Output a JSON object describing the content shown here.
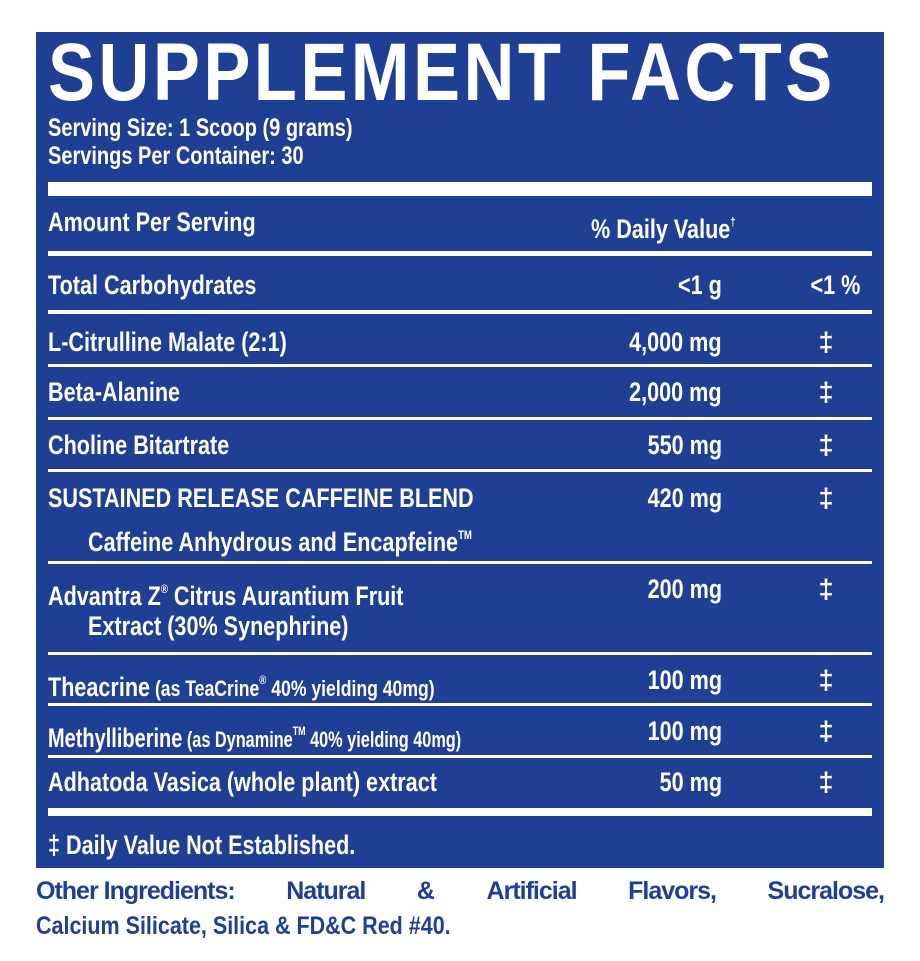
{
  "title": "SUPPLEMENT FACTS",
  "serving_size": "Serving Size: 1 Scoop (9 grams)",
  "servings_per_container": "Servings Per Container: 30",
  "header": {
    "amount_per_serving": "Amount Per Serving",
    "daily_value": "% Daily Value",
    "daily_value_mark": "†"
  },
  "rows": [
    {
      "name": "Total Carbohydrates",
      "amount": "<1 g",
      "dv": "<1 %"
    },
    {
      "name": "L-Citrulline Malate (2:1)",
      "amount": "4,000 mg",
      "dv": "‡"
    },
    {
      "name": "Beta-Alanine",
      "amount": "2,000 mg",
      "dv": "‡"
    },
    {
      "name": "Choline Bitartrate",
      "amount": "550 mg",
      "dv": "‡"
    },
    {
      "name": "SUSTAINED RELEASE CAFFEINE BLEND",
      "sub": "Caffeine Anhydrous and Encapfeine",
      "sub_mark": "TM",
      "amount": "420 mg",
      "dv": "‡"
    },
    {
      "name": "Advantra Z",
      "name_mark": "®",
      "name_rest": " Citrus Aurantium Fruit",
      "sub": "Extract (30% Synephrine)",
      "amount": "200 mg",
      "dv": "‡"
    },
    {
      "name": "Theacrine",
      "detail": " (as TeaCrine",
      "detail_mark": "®",
      "detail_rest": " 40% yielding 40mg)",
      "amount": "100 mg",
      "dv": "‡"
    },
    {
      "name": "Methylliberine",
      "detail": " (as Dynamine",
      "detail_mark": "TM",
      "detail_rest": " 40% yielding 40mg)",
      "amount": "100 mg",
      "dv": "‡"
    },
    {
      "name": "Adhatoda Vasica (whole plant) extract",
      "amount": "50 mg",
      "dv": "‡"
    }
  ],
  "footnote": "‡ Daily Value Not Established.",
  "other_ingredients": {
    "label": "Other Ingredients:",
    "line1": [
      "Natural",
      "&",
      "Artificial",
      "Flavors,",
      "Sucralose,"
    ],
    "line2": "Calcium Silicate, Silica & FD&C Red #40."
  },
  "colors": {
    "panel": "#1f3f94",
    "text": "#ffffff"
  }
}
